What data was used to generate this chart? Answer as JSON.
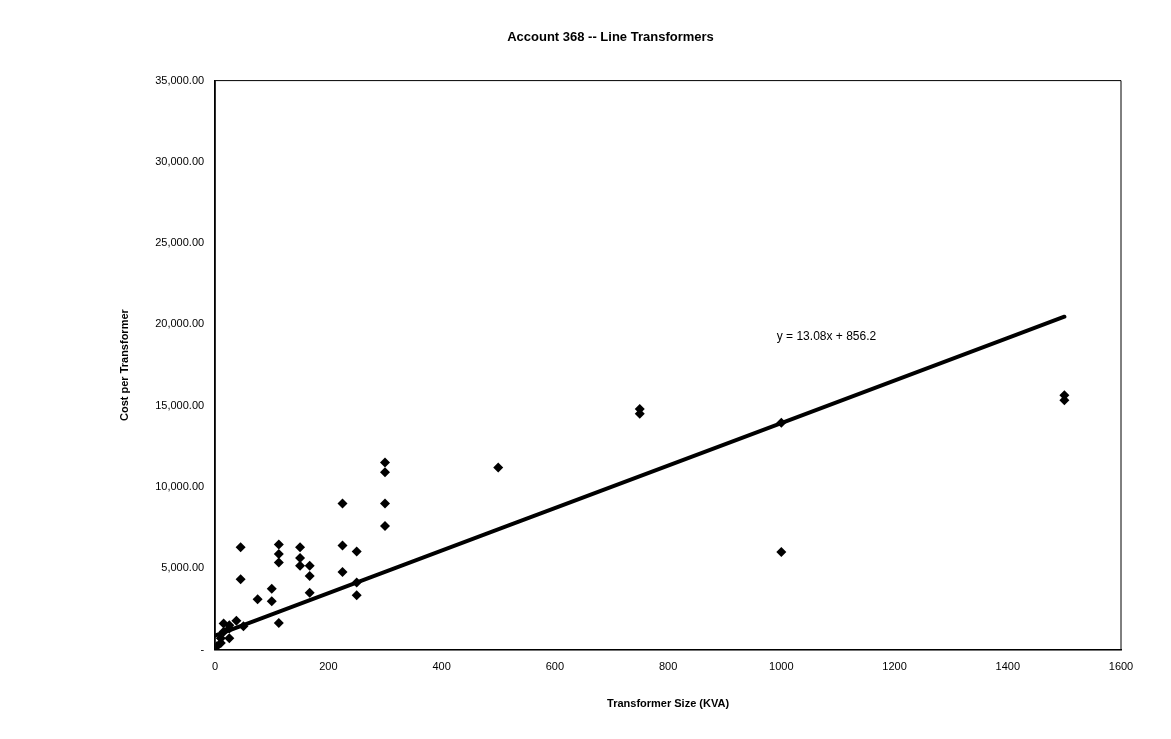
{
  "chart_data": {
    "type": "scatter",
    "title": "Account 368 -- Line Transformers",
    "xlabel": "Transformer Size (KVA)",
    "ylabel": "Cost per Transformer",
    "xlim": [
      0,
      1600
    ],
    "xticks": [
      0,
      200,
      400,
      600,
      800,
      1000,
      1200,
      1400,
      1600
    ],
    "ylim": [
      0,
      35000
    ],
    "yticks": [
      {
        "value": 0,
        "label": "-"
      },
      {
        "value": 5000,
        "label": "5,000.00"
      },
      {
        "value": 10000,
        "label": "10,000.00"
      },
      {
        "value": 15000,
        "label": "15,000.00"
      },
      {
        "value": 20000,
        "label": "20,000.00"
      },
      {
        "value": 25000,
        "label": "25,000.00"
      },
      {
        "value": 30000,
        "label": "30,000.00"
      },
      {
        "value": 35000,
        "label": "35,000.00"
      }
    ],
    "grid": false,
    "legend": false,
    "marker": "diamond",
    "series": [
      {
        "color": "#000000",
        "x": [
          3,
          10,
          10,
          15,
          15,
          25,
          25,
          25,
          37.5,
          45,
          45,
          50,
          75,
          100,
          100,
          112.5,
          112.5,
          112.5,
          112.5,
          150,
          150,
          150,
          167,
          167,
          167,
          225,
          225,
          225,
          250,
          250,
          250,
          300,
          300,
          300,
          300,
          500,
          750,
          750,
          1000,
          1000,
          1500,
          1500
        ],
        "values": [
          200,
          400,
          700,
          1100,
          1600,
          700,
          1300,
          1500,
          1780,
          6290,
          4330,
          1430,
          3090,
          3750,
          2980,
          1640,
          6460,
          5880,
          5360,
          6290,
          5630,
          5160,
          5160,
          4530,
          3500,
          8990,
          6400,
          4780,
          6040,
          4120,
          3350,
          11510,
          10910,
          8990,
          7600,
          11200,
          14800,
          14500,
          13960,
          6000,
          15650,
          15340
        ]
      },
      {
        "type": "line",
        "color": "#000000",
        "marker": "none",
        "x": [
          0,
          1500
        ],
        "values": [
          856,
          20476
        ]
      }
    ],
    "annotations": [
      "y = 13.08x + 856.2"
    ]
  }
}
